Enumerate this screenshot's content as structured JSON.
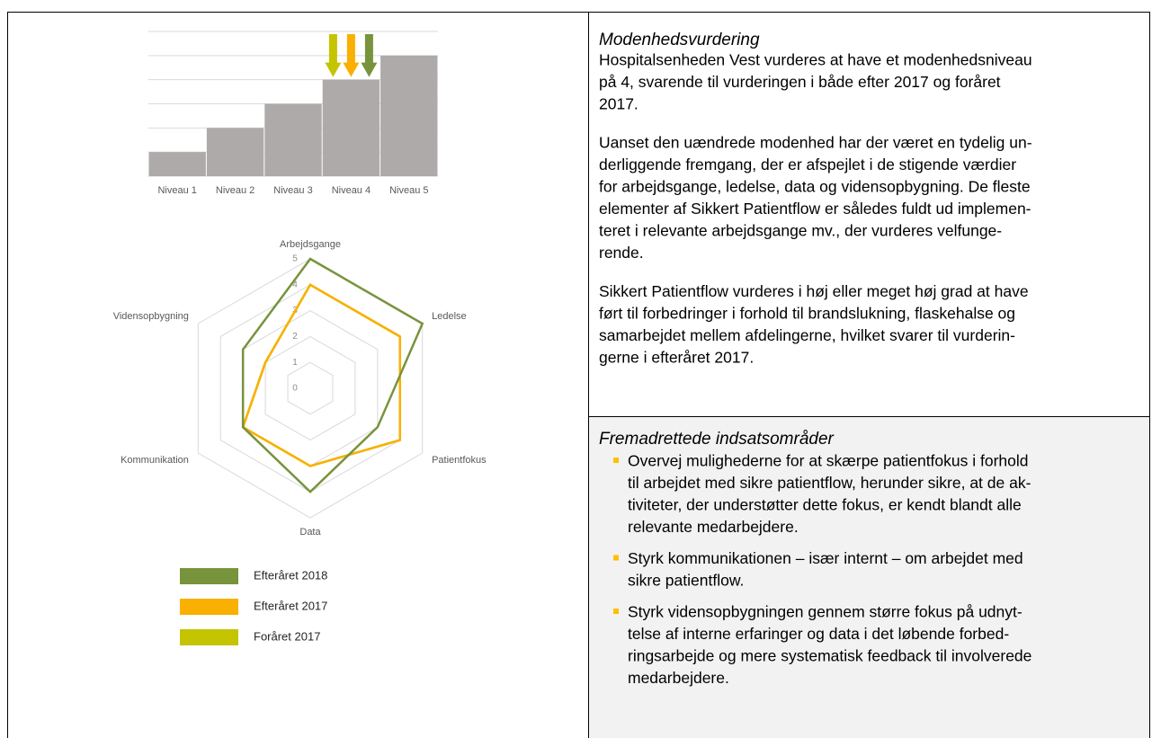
{
  "chart_data": [
    {
      "type": "bar",
      "categories": [
        "Niveau 1",
        "Niveau 2",
        "Niveau 3",
        "Niveau 4",
        "Niveau 5"
      ],
      "values": [
        1,
        2,
        3,
        4,
        5
      ],
      "color": "#aeaaaa",
      "ylim": [
        0,
        6
      ],
      "yticks": [
        0,
        1,
        2,
        3,
        4,
        5,
        6
      ],
      "grid": true,
      "arrows": [
        {
          "color": "#c4c400",
          "value": 4
        },
        {
          "color": "#f9b000",
          "value": 4
        },
        {
          "color": "#77933c",
          "value": 4
        }
      ]
    },
    {
      "type": "radar",
      "categories": [
        "Arbejdsgange",
        "Ledelse",
        "Patientfokus",
        "Data",
        "Kommunikation",
        "Vidensopbygning"
      ],
      "rlim": [
        0,
        5
      ],
      "rticks": [
        0,
        1,
        2,
        3,
        4,
        5
      ],
      "grid": true,
      "legend": "bottom",
      "series": [
        {
          "name": "Efteråret 2018",
          "color": "#77933c",
          "values": [
            5,
            5,
            3,
            4,
            3,
            3
          ]
        },
        {
          "name": "Efteråret 2017",
          "color": "#f9b000",
          "values": [
            4,
            4,
            4,
            3,
            3,
            2
          ]
        },
        {
          "name": "Foråret 2017",
          "color": "#c4c400",
          "values": [
            4,
            4,
            4,
            3,
            3,
            2
          ]
        }
      ]
    }
  ],
  "assessment": {
    "heading": "Modenhedsvurdering",
    "paragraphs": [
      [
        "Hospitalsenheden Vest vurderes at have et modenhedsniveau",
        "på 4, svarende til vurderingen i både efter 2017 og foråret",
        "2017."
      ],
      [
        "Uanset den uændrede modenhed har der været en tydelig un-",
        "derliggende fremgang, der er afspejlet i de stigende værdier",
        "for arbejdsgange, ledelse, data og vidensopbygning. De fleste",
        "elementer af Sikkert Patientflow er således fuldt ud implemen-",
        "teret i relevante arbejdsgange mv., der vurderes velfunge-",
        "rende."
      ],
      [
        "Sikkert Patientflow vurderes i høj eller meget høj grad at have",
        "ført til forbedringer i forhold til brandslukning, flaskehalse og",
        "samarbejdet mellem afdelingerne, hvilket svarer til vurderin-",
        "gerne i efteråret 2017."
      ]
    ]
  },
  "focus_areas": {
    "heading": "Fremadrettede indsatsområder",
    "bullets": [
      [
        "Overvej mulighederne for at skærpe patientfokus i forhold",
        "til arbejdet med sikre patientflow, herunder sikre, at de ak-",
        "tiviteter, der understøtter dette fokus, er kendt blandt alle",
        "relevante medarbejdere."
      ],
      [
        "Styrk kommunikationen – især internt – om arbejdet med",
        "sikre patientflow."
      ],
      [
        "Styrk vidensopbygningen gennem større fokus på udnyt-",
        "telse af interne erfaringer og data i det løbende forbed-",
        "ringsarbejde og mere systematisk feedback til involverede",
        "medarbejdere."
      ]
    ]
  }
}
